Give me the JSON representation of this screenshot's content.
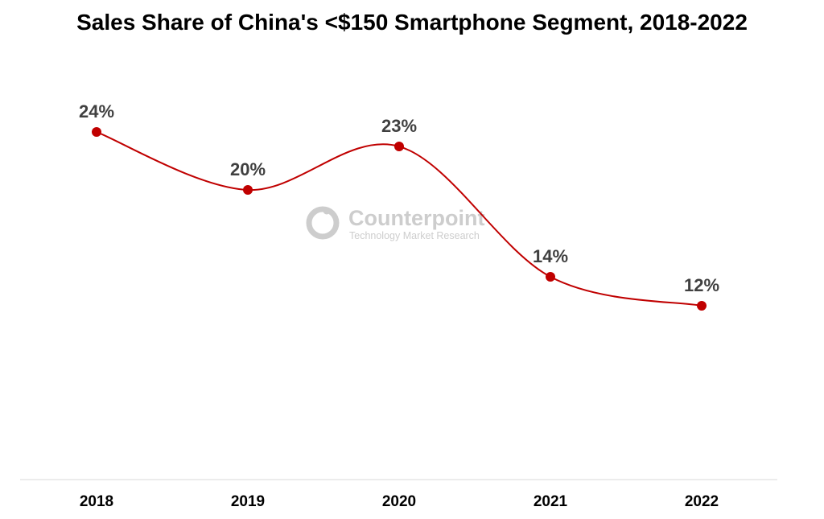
{
  "chart_data": {
    "type": "line",
    "title": "Sales Share of China's <$150 Smartphone Segment, 2018-2022",
    "categories": [
      "2018",
      "2019",
      "2020",
      "2021",
      "2022"
    ],
    "series": [
      {
        "values": [
          24,
          20,
          23,
          14,
          12
        ],
        "labels": [
          "24%",
          "20%",
          "23%",
          "14%",
          "12%"
        ],
        "color": "#c00000"
      }
    ],
    "ylim": [
      0,
      32
    ],
    "grid": false,
    "legend": "none",
    "line_style": "smooth"
  },
  "watermark": {
    "name": "Counterpoint",
    "tagline": "Technology Market Research",
    "color": "#c8c8c8"
  }
}
